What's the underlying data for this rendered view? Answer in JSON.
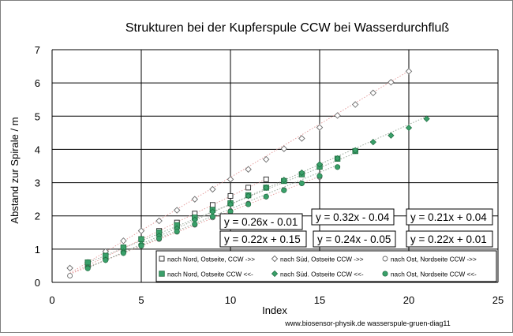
{
  "chart_data": {
    "type": "scatter",
    "title": "Strukturen bei der Kupferspule CCW bei Wasserdurchfluß",
    "xlabel": "Index",
    "ylabel": "Abstand zur Spirale / m",
    "xlim": [
      0,
      25
    ],
    "ylim": [
      0,
      7
    ],
    "x_ticks": [
      0,
      5,
      10,
      15,
      20,
      25
    ],
    "y_ticks": [
      0,
      1,
      2,
      3,
      4,
      5,
      6,
      7
    ],
    "grid": true,
    "legend_position": "bottom-right-inside",
    "credit": "www.biosensor-physik.de  wasserspule-gruen-diag11",
    "equations": [
      "y = 0.26x - 0.01",
      "y = 0.32x - 0.04",
      "y = 0.21x + 0.04",
      "y = 0.22x + 0.15",
      "y = 0.24x - 0.05",
      "y = 0.22x + 0.01"
    ],
    "series": [
      {
        "name": "nach Nord, Ostseite, CCW  ->>",
        "marker": "square-open",
        "x": [
          2,
          3,
          4,
          5,
          6,
          7,
          8,
          9,
          10,
          11,
          12
        ],
        "y": [
          0.55,
          0.8,
          1.05,
          1.3,
          1.55,
          1.8,
          2.07,
          2.33,
          2.6,
          2.85,
          3.1
        ],
        "trend": {
          "slope": 0.26,
          "intercept": -0.01,
          "x0": 1,
          "x1": 12
        }
      },
      {
        "name": "nach  Süd, Ostseite CCW ->>",
        "marker": "diamond-open",
        "x": [
          1,
          2,
          3,
          4,
          5,
          6,
          7,
          8,
          9,
          10,
          11,
          12,
          13,
          14,
          15,
          16,
          17,
          18,
          19,
          20
        ],
        "y": [
          0.43,
          0.6,
          0.93,
          1.25,
          1.55,
          1.85,
          2.17,
          2.5,
          2.8,
          3.1,
          3.4,
          3.7,
          4.02,
          4.33,
          4.66,
          5.02,
          5.35,
          5.7,
          6.02,
          6.35
        ],
        "trend": {
          "slope": 0.32,
          "intercept": -0.04,
          "x0": 1,
          "x1": 20
        }
      },
      {
        "name": "nach Ost, Nordseite CCW ->>",
        "marker": "circle-open",
        "x": [
          1,
          2,
          3,
          4,
          5,
          6,
          7,
          8,
          9,
          10,
          11,
          12,
          13,
          14,
          15
        ],
        "y": [
          0.2,
          0.45,
          0.68,
          0.9,
          1.1,
          1.3,
          1.52,
          1.73,
          1.95,
          2.15,
          2.37,
          2.58,
          2.78,
          2.98,
          3.17
        ],
        "trend": {
          "slope": 0.21,
          "intercept": 0.04,
          "x0": 1,
          "x1": 15
        }
      },
      {
        "name": "nach Nord, Ostseite CCW <<-",
        "marker": "square-filled",
        "x": [
          2,
          3,
          4,
          5,
          6,
          7,
          8,
          9,
          10,
          11,
          12,
          13,
          14,
          15,
          16,
          17
        ],
        "y": [
          0.6,
          0.8,
          1.05,
          1.3,
          1.5,
          1.72,
          1.95,
          2.18,
          2.38,
          2.62,
          2.85,
          3.05,
          3.25,
          3.48,
          3.72,
          3.95
        ],
        "trend": {
          "slope": 0.22,
          "intercept": 0.15,
          "x0": 2,
          "x1": 17
        }
      },
      {
        "name": "nach Süd. Ostseite CCW <<-",
        "marker": "diamond-filled",
        "x": [
          2,
          3,
          4,
          5,
          6,
          7,
          8,
          9,
          10,
          11,
          12,
          13,
          14,
          15,
          16,
          17,
          18,
          19,
          20,
          21
        ],
        "y": [
          0.45,
          0.68,
          0.92,
          1.15,
          1.4,
          1.62,
          1.88,
          2.12,
          2.35,
          2.6,
          2.85,
          3.08,
          3.3,
          3.55,
          3.73,
          3.97,
          4.22,
          4.42,
          4.65,
          4.92
        ],
        "trend": {
          "slope": 0.24,
          "intercept": -0.05,
          "x0": 2,
          "x1": 21
        }
      },
      {
        "name": "nach Ost, Nordseite CCW <<-",
        "marker": "circle-filled",
        "x": [
          2,
          3,
          4,
          5,
          6,
          7,
          8,
          9,
          10,
          11,
          12,
          13,
          14,
          15,
          16
        ],
        "y": [
          0.42,
          0.67,
          0.88,
          1.1,
          1.32,
          1.53,
          1.75,
          1.98,
          2.13,
          2.35,
          2.58,
          2.77,
          2.98,
          3.2,
          3.47
        ],
        "trend": {
          "slope": 0.22,
          "intercept": 0.01,
          "x0": 2,
          "x1": 16
        }
      }
    ]
  }
}
